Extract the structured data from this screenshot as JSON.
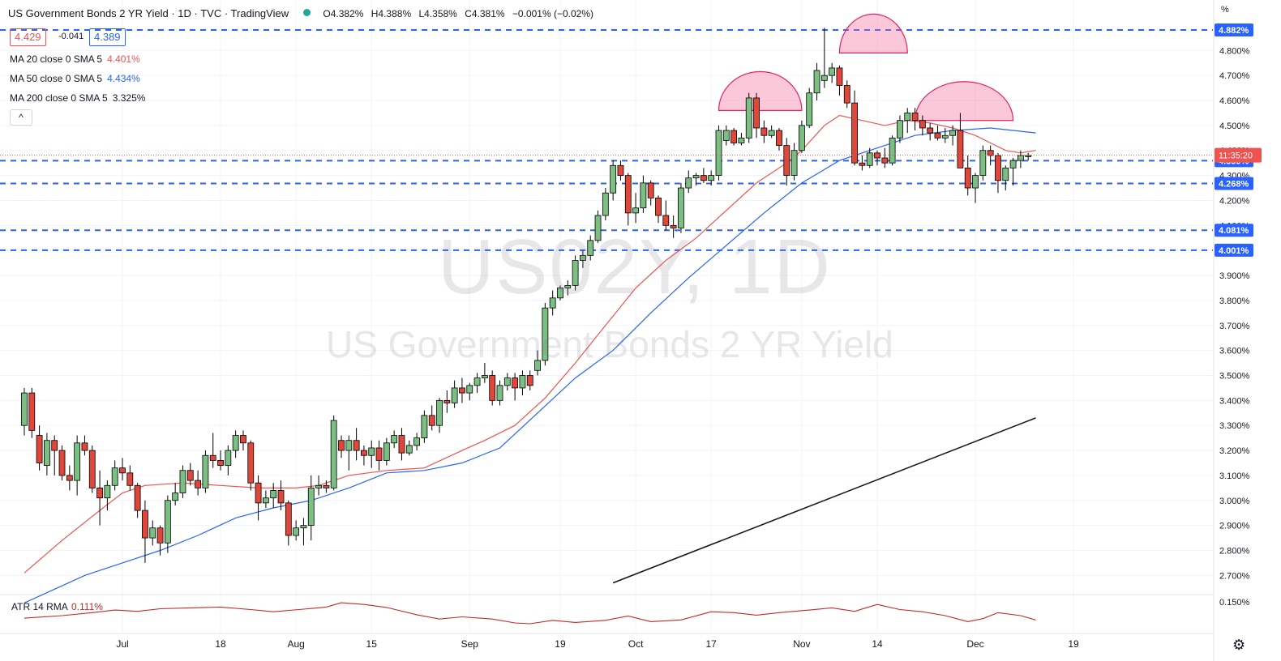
{
  "header": {
    "title": "US Government Bonds 2 YR Yield · 1D · TVC · TradingView",
    "ohlc": [
      {
        "k": "O",
        "v": "4.382%"
      },
      {
        "k": "H",
        "v": "4.388%"
      },
      {
        "k": "L",
        "v": "4.358%"
      },
      {
        "k": "C",
        "v": "4.381%"
      },
      {
        "k": "",
        "v": "−0.001% (−0.02%)"
      }
    ]
  },
  "price_boxes": {
    "bid": "4.429",
    "spread": "-0.041",
    "ask": "4.389"
  },
  "studies": [
    {
      "label": "MA 20 close 0 SMA 5",
      "value": "4.401%",
      "color": "#ef5350"
    },
    {
      "label": "MA 50 close 0 SMA 5",
      "value": "4.434%",
      "color": "#2962ff"
    },
    {
      "label": "MA 200 close 0 SMA 5",
      "value": "3.325%",
      "color": "#131722"
    }
  ],
  "collapse_label": "^",
  "watermark": {
    "symbol": "US02Y, 1D",
    "name": "US Government Bonds 2 YR Yield"
  },
  "axis_unit": "%",
  "settings_icon": "gear-icon",
  "chart_data": {
    "type": "candlestick",
    "y_unit": "%",
    "ylim": [
      2.62,
      4.93
    ],
    "y_ticks": [
      2.7,
      2.8,
      2.9,
      3.0,
      3.1,
      3.2,
      3.3,
      3.4,
      3.5,
      3.6,
      3.7,
      3.8,
      3.9,
      4.0,
      4.1,
      4.2,
      4.3,
      4.4,
      4.5,
      4.6,
      4.7,
      4.8
    ],
    "x_ticks": [
      {
        "label": "Jul",
        "day": 0
      },
      {
        "label": "18",
        "day": 13
      },
      {
        "label": "Aug",
        "day": 23
      },
      {
        "label": "15",
        "day": 33
      },
      {
        "label": "Sep",
        "day": 46
      },
      {
        "label": "19",
        "day": 58
      },
      {
        "label": "Oct",
        "day": 68
      },
      {
        "label": "17",
        "day": 78
      },
      {
        "label": "Nov",
        "day": 90
      },
      {
        "label": "14",
        "day": 100
      },
      {
        "label": "Dec",
        "day": 113
      },
      {
        "label": "19",
        "day": 126
      }
    ],
    "candles_start_day": -13,
    "ohlc": [
      [
        3.3,
        3.45,
        3.26,
        3.43
      ],
      [
        3.43,
        3.45,
        3.25,
        3.28
      ],
      [
        3.26,
        3.3,
        3.12,
        3.15
      ],
      [
        3.14,
        3.27,
        3.1,
        3.24
      ],
      [
        3.24,
        3.26,
        3.1,
        3.2
      ],
      [
        3.2,
        3.22,
        3.08,
        3.1
      ],
      [
        3.1,
        3.14,
        3.04,
        3.08
      ],
      [
        3.08,
        3.26,
        3.02,
        3.23
      ],
      [
        3.23,
        3.26,
        3.18,
        3.2
      ],
      [
        3.2,
        3.22,
        3.03,
        3.05
      ],
      [
        3.05,
        3.12,
        2.9,
        3.01
      ],
      [
        3.01,
        3.08,
        2.96,
        3.06
      ],
      [
        3.06,
        3.16,
        3.04,
        3.13
      ],
      [
        3.13,
        3.17,
        3.08,
        3.11
      ],
      [
        3.11,
        3.14,
        3.04,
        3.06
      ],
      [
        3.06,
        3.07,
        2.93,
        2.96
      ],
      [
        2.96,
        3.0,
        2.75,
        2.85
      ],
      [
        2.85,
        2.92,
        2.82,
        2.89
      ],
      [
        2.89,
        2.9,
        2.78,
        2.83
      ],
      [
        2.83,
        3.02,
        2.79,
        3.0
      ],
      [
        3.0,
        3.07,
        2.98,
        3.03
      ],
      [
        3.03,
        3.14,
        3.01,
        3.12
      ],
      [
        3.12,
        3.15,
        3.06,
        3.08
      ],
      [
        3.08,
        3.12,
        3.02,
        3.05
      ],
      [
        3.05,
        3.2,
        3.03,
        3.18
      ],
      [
        3.18,
        3.27,
        3.13,
        3.16
      ],
      [
        3.16,
        3.2,
        3.12,
        3.14
      ],
      [
        3.14,
        3.22,
        3.1,
        3.2
      ],
      [
        3.2,
        3.28,
        3.17,
        3.26
      ],
      [
        3.26,
        3.28,
        3.2,
        3.23
      ],
      [
        3.23,
        3.24,
        3.04,
        3.07
      ],
      [
        3.07,
        3.1,
        2.92,
        2.99
      ],
      [
        2.99,
        3.04,
        2.97,
        3.01
      ],
      [
        3.01,
        3.07,
        2.97,
        3.04
      ],
      [
        3.04,
        3.08,
        2.96,
        2.99
      ],
      [
        2.99,
        3.0,
        2.82,
        2.86
      ],
      [
        2.86,
        2.92,
        2.84,
        2.89
      ],
      [
        2.89,
        2.93,
        2.82,
        2.9
      ],
      [
        2.9,
        3.1,
        2.84,
        3.05
      ],
      [
        3.05,
        3.1,
        3.02,
        3.06
      ],
      [
        3.06,
        3.08,
        3.03,
        3.05
      ],
      [
        3.05,
        3.34,
        3.04,
        3.32
      ],
      [
        3.24,
        3.26,
        3.17,
        3.2
      ],
      [
        3.2,
        3.26,
        3.12,
        3.24
      ],
      [
        3.24,
        3.29,
        3.16,
        3.2
      ],
      [
        3.2,
        3.22,
        3.14,
        3.18
      ],
      [
        3.18,
        3.24,
        3.13,
        3.21
      ],
      [
        3.21,
        3.24,
        3.12,
        3.16
      ],
      [
        3.16,
        3.25,
        3.14,
        3.23
      ],
      [
        3.23,
        3.28,
        3.21,
        3.26
      ],
      [
        3.26,
        3.29,
        3.16,
        3.19
      ],
      [
        3.19,
        3.24,
        3.18,
        3.22
      ],
      [
        3.22,
        3.27,
        3.2,
        3.25
      ],
      [
        3.25,
        3.36,
        3.23,
        3.34
      ],
      [
        3.34,
        3.38,
        3.28,
        3.3
      ],
      [
        3.3,
        3.41,
        3.27,
        3.4
      ],
      [
        3.4,
        3.44,
        3.35,
        3.39
      ],
      [
        3.39,
        3.48,
        3.37,
        3.45
      ],
      [
        3.45,
        3.49,
        3.39,
        3.43
      ],
      [
        3.43,
        3.47,
        3.4,
        3.46
      ],
      [
        3.46,
        3.51,
        3.43,
        3.49
      ],
      [
        3.49,
        3.55,
        3.47,
        3.5
      ],
      [
        3.5,
        3.52,
        3.38,
        3.4
      ],
      [
        3.4,
        3.48,
        3.38,
        3.46
      ],
      [
        3.46,
        3.51,
        3.44,
        3.49
      ],
      [
        3.49,
        3.51,
        3.4,
        3.45
      ],
      [
        3.45,
        3.52,
        3.42,
        3.5
      ],
      [
        3.5,
        3.52,
        3.44,
        3.46
      ],
      [
        3.52,
        3.6,
        3.5,
        3.56
      ],
      [
        3.56,
        3.79,
        3.54,
        3.77
      ],
      [
        3.77,
        3.84,
        3.74,
        3.81
      ],
      [
        3.81,
        3.86,
        3.8,
        3.85
      ],
      [
        3.85,
        3.88,
        3.82,
        3.86
      ],
      [
        3.86,
        3.98,
        3.84,
        3.96
      ],
      [
        3.96,
        4.0,
        3.93,
        3.98
      ],
      [
        3.98,
        4.06,
        3.96,
        4.04
      ],
      [
        4.04,
        4.16,
        4.03,
        4.14
      ],
      [
        4.14,
        4.25,
        4.12,
        4.23
      ],
      [
        4.23,
        4.36,
        4.2,
        4.34
      ],
      [
        4.34,
        4.36,
        4.28,
        4.3
      ],
      [
        4.3,
        4.31,
        4.1,
        4.15
      ],
      [
        4.15,
        4.23,
        4.11,
        4.17
      ],
      [
        4.17,
        4.3,
        4.15,
        4.27
      ],
      [
        4.27,
        4.28,
        4.18,
        4.21
      ],
      [
        4.21,
        4.22,
        4.11,
        4.14
      ],
      [
        4.14,
        4.2,
        4.08,
        4.1
      ],
      [
        4.1,
        4.14,
        4.05,
        4.09
      ],
      [
        4.09,
        4.27,
        4.07,
        4.25
      ],
      [
        4.25,
        4.32,
        4.23,
        4.29
      ],
      [
        4.29,
        4.31,
        4.26,
        4.3
      ],
      [
        4.3,
        4.33,
        4.27,
        4.28
      ],
      [
        4.28,
        4.32,
        4.26,
        4.3
      ],
      [
        4.3,
        4.5,
        4.28,
        4.48
      ],
      [
        4.44,
        4.5,
        4.42,
        4.48
      ],
      [
        4.48,
        4.49,
        4.42,
        4.43
      ],
      [
        4.43,
        4.47,
        4.42,
        4.45
      ],
      [
        4.45,
        4.63,
        4.43,
        4.61
      ],
      [
        4.61,
        4.63,
        4.45,
        4.49
      ],
      [
        4.49,
        4.52,
        4.43,
        4.46
      ],
      [
        4.46,
        4.5,
        4.45,
        4.48
      ],
      [
        4.48,
        4.49,
        4.4,
        4.42
      ],
      [
        4.42,
        4.45,
        4.26,
        4.3
      ],
      [
        4.3,
        4.43,
        4.28,
        4.4
      ],
      [
        4.4,
        4.52,
        4.39,
        4.5
      ],
      [
        4.5,
        4.65,
        4.49,
        4.63
      ],
      [
        4.63,
        4.75,
        4.6,
        4.72
      ],
      [
        4.68,
        4.89,
        4.65,
        4.7
      ],
      [
        4.7,
        4.75,
        4.67,
        4.73
      ],
      [
        4.73,
        4.74,
        4.62,
        4.66
      ],
      [
        4.66,
        4.68,
        4.57,
        4.59
      ],
      [
        4.59,
        4.64,
        4.34,
        4.35
      ],
      [
        4.35,
        4.38,
        4.32,
        4.34
      ],
      [
        4.34,
        4.41,
        4.33,
        4.39
      ],
      [
        4.39,
        4.4,
        4.34,
        4.37
      ],
      [
        4.37,
        4.41,
        4.33,
        4.35
      ],
      [
        4.35,
        4.46,
        4.34,
        4.45
      ],
      [
        4.45,
        4.54,
        4.43,
        4.52
      ],
      [
        4.52,
        4.57,
        4.47,
        4.55
      ],
      [
        4.55,
        4.57,
        4.48,
        4.52
      ],
      [
        4.52,
        4.54,
        4.46,
        4.49
      ],
      [
        4.49,
        4.51,
        4.44,
        4.47
      ],
      [
        4.47,
        4.5,
        4.44,
        4.45
      ],
      [
        4.45,
        4.49,
        4.43,
        4.46
      ],
      [
        4.46,
        4.5,
        4.42,
        4.48
      ],
      [
        4.48,
        4.55,
        4.34,
        4.33
      ],
      [
        4.33,
        4.38,
        4.22,
        4.25
      ],
      [
        4.25,
        4.31,
        4.19,
        4.3
      ],
      [
        4.3,
        4.42,
        4.28,
        4.4
      ],
      [
        4.4,
        4.42,
        4.34,
        4.38
      ],
      [
        4.38,
        4.39,
        4.23,
        4.28
      ],
      [
        4.28,
        4.34,
        4.24,
        4.33
      ],
      [
        4.33,
        4.37,
        4.26,
        4.36
      ],
      [
        4.36,
        4.4,
        4.33,
        4.38
      ],
      [
        4.38,
        4.39,
        4.36,
        4.38
      ]
    ],
    "ma20": [
      [
        -13,
        2.71
      ],
      [
        -8,
        2.84
      ],
      [
        -3,
        2.96
      ],
      [
        0,
        3.03
      ],
      [
        3,
        3.06
      ],
      [
        8,
        3.07
      ],
      [
        13,
        3.06
      ],
      [
        18,
        3.05
      ],
      [
        23,
        3.05
      ],
      [
        26,
        3.06
      ],
      [
        30,
        3.1
      ],
      [
        35,
        3.12
      ],
      [
        40,
        3.13
      ],
      [
        45,
        3.2
      ],
      [
        48,
        3.24
      ],
      [
        52,
        3.3
      ],
      [
        56,
        3.41
      ],
      [
        60,
        3.55
      ],
      [
        64,
        3.7
      ],
      [
        68,
        3.85
      ],
      [
        72,
        3.96
      ],
      [
        76,
        4.05
      ],
      [
        80,
        4.16
      ],
      [
        84,
        4.27
      ],
      [
        88,
        4.35
      ],
      [
        90,
        4.4
      ],
      [
        93,
        4.5
      ],
      [
        95,
        4.54
      ],
      [
        98,
        4.52
      ],
      [
        101,
        4.5
      ],
      [
        104,
        4.52
      ],
      [
        107,
        4.51
      ],
      [
        110,
        4.49
      ],
      [
        113,
        4.46
      ],
      [
        115,
        4.43
      ],
      [
        117,
        4.4
      ],
      [
        119,
        4.39
      ],
      [
        121,
        4.4
      ]
    ],
    "ma50": [
      [
        -13,
        2.59
      ],
      [
        -5,
        2.7
      ],
      [
        0,
        2.75
      ],
      [
        5,
        2.8
      ],
      [
        10,
        2.86
      ],
      [
        15,
        2.93
      ],
      [
        20,
        2.97
      ],
      [
        25,
        3.0
      ],
      [
        30,
        3.05
      ],
      [
        35,
        3.11
      ],
      [
        40,
        3.12
      ],
      [
        45,
        3.15
      ],
      [
        50,
        3.21
      ],
      [
        55,
        3.35
      ],
      [
        60,
        3.49
      ],
      [
        65,
        3.6
      ],
      [
        70,
        3.75
      ],
      [
        75,
        3.89
      ],
      [
        80,
        4.02
      ],
      [
        85,
        4.15
      ],
      [
        90,
        4.27
      ],
      [
        95,
        4.36
      ],
      [
        100,
        4.41
      ],
      [
        105,
        4.46
      ],
      [
        110,
        4.48
      ],
      [
        115,
        4.49
      ],
      [
        121,
        4.47
      ]
    ],
    "ma200": [
      [
        65,
        2.67
      ],
      [
        121,
        3.33
      ]
    ],
    "levels": [
      {
        "value": 4.882,
        "label": "4.882%"
      },
      {
        "value": 4.359,
        "label": "4.359%"
      },
      {
        "value": 4.268,
        "label": "4.268%"
      },
      {
        "value": 4.081,
        "label": "4.081%"
      },
      {
        "value": 4.001,
        "label": "4.001%"
      }
    ],
    "current_price": {
      "value": 4.381,
      "label": "11:35:20"
    },
    "arcs": [
      {
        "day_from": 79,
        "day_to": 90,
        "base": 4.56
      },
      {
        "day_from": 95,
        "day_to": 104,
        "base": 4.79
      },
      {
        "day_from": 105,
        "day_to": 118,
        "base": 4.52
      }
    ],
    "atr": {
      "label": "ATR 14 RMA",
      "value": "0.111%",
      "axis_tick": "0.150%",
      "points": [
        [
          -13,
          0.112
        ],
        [
          -8,
          0.118
        ],
        [
          -4,
          0.125
        ],
        [
          -1,
          0.131
        ],
        [
          2,
          0.128
        ],
        [
          5,
          0.134
        ],
        [
          9,
          0.136
        ],
        [
          13,
          0.138
        ],
        [
          17,
          0.132
        ],
        [
          20,
          0.127
        ],
        [
          24,
          0.133
        ],
        [
          27,
          0.138
        ],
        [
          29,
          0.148
        ],
        [
          32,
          0.144
        ],
        [
          35,
          0.137
        ],
        [
          39,
          0.12
        ],
        [
          42,
          0.11
        ],
        [
          45,
          0.115
        ],
        [
          49,
          0.11
        ],
        [
          52,
          0.101
        ],
        [
          54,
          0.099
        ],
        [
          57,
          0.107
        ],
        [
          60,
          0.102
        ],
        [
          64,
          0.107
        ],
        [
          67,
          0.117
        ],
        [
          70,
          0.104
        ],
        [
          74,
          0.108
        ],
        [
          78,
          0.127
        ],
        [
          81,
          0.125
        ],
        [
          84,
          0.119
        ],
        [
          87,
          0.125
        ],
        [
          91,
          0.131
        ],
        [
          94,
          0.136
        ],
        [
          97,
          0.128
        ],
        [
          100,
          0.144
        ],
        [
          103,
          0.132
        ],
        [
          106,
          0.127
        ],
        [
          109,
          0.118
        ],
        [
          112,
          0.104
        ],
        [
          114,
          0.111
        ],
        [
          116,
          0.125
        ],
        [
          119,
          0.118
        ],
        [
          121,
          0.108
        ]
      ]
    }
  }
}
